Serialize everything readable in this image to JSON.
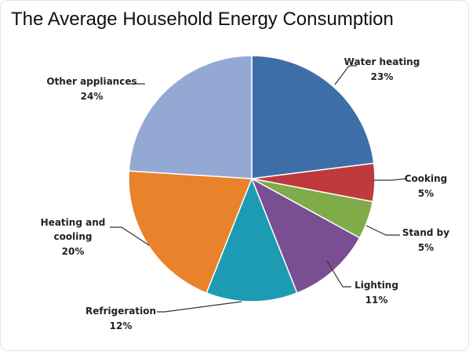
{
  "chart_data": {
    "type": "pie",
    "title": "The Average Household Energy Consumption",
    "start_angle_deg": 0,
    "direction": "clockwise",
    "slices": [
      {
        "label": "Water heating",
        "value": 23,
        "value_label": "23%",
        "color": "#3e6ea8"
      },
      {
        "label": "Cooking",
        "value": 5,
        "value_label": "5%",
        "color": "#bf3a3c"
      },
      {
        "label": "Stand by",
        "value": 5,
        "value_label": "5%",
        "color": "#7fab48"
      },
      {
        "label": "Lighting",
        "value": 11,
        "value_label": "11%",
        "color": "#7a4e93"
      },
      {
        "label": "Refrigeration",
        "value": 12,
        "value_label": "12%",
        "color": "#1d9bb2"
      },
      {
        "label": "Heating and cooling",
        "value": 20,
        "value_label": "20%",
        "color": "#e8822b"
      },
      {
        "label": "Other appliances",
        "value": 24,
        "value_label": "24%",
        "color": "#93a9d4"
      }
    ]
  }
}
